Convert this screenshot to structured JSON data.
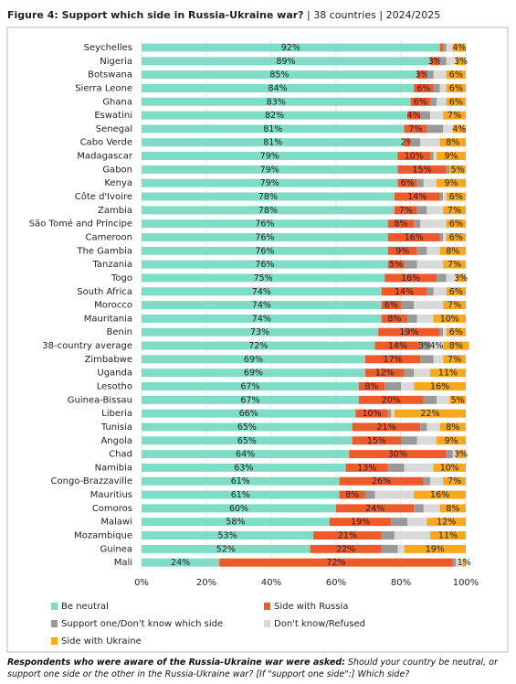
{
  "chart_data": {
    "type": "stacked-bar-horizontal",
    "title": "Figure 4: Support which side in Russia-Ukraine war?",
    "subtitle": " | 38 countries | 2024/2025",
    "categories": [
      "Seychelles",
      "Nigeria",
      "Botswana",
      "Sierra Leone",
      "Ghana",
      "Eswatini",
      "Senegal",
      "Cabo Verde",
      "Madagascar",
      "Gabon",
      "Kenya",
      "Côte d'Ivoire",
      "Zambia",
      "São Tomé and Príncipe",
      "Cameroon",
      "The Gambia",
      "Tanzania",
      "Togo",
      "South Africa",
      "Morocco",
      "Mauritania",
      "Benin",
      "38-country average",
      "Zimbabwe",
      "Uganda",
      "Lesotho",
      "Guinea-Bissau",
      "Liberia",
      "Tunisia",
      "Angola",
      "Chad",
      "Namibia",
      "Congo-Brazzaville",
      "Mauritius",
      "Comoros",
      "Malawi",
      "Mozambique",
      "Guinea",
      "Mali"
    ],
    "series": [
      {
        "name": "Be neutral",
        "color": "#7fdcc6",
        "values": [
          92,
          89,
          85,
          84,
          83,
          82,
          81,
          81,
          79,
          79,
          79,
          78,
          78,
          76,
          76,
          76,
          76,
          75,
          74,
          74,
          74,
          73,
          72,
          69,
          69,
          67,
          67,
          66,
          65,
          65,
          64,
          63,
          61,
          61,
          60,
          58,
          53,
          52,
          24
        ],
        "value_labels": [
          "92%",
          "89%",
          "85%",
          "84%",
          "83%",
          "82%",
          "81%",
          "81%",
          "79%",
          "79%",
          "79%",
          "78%",
          "78%",
          "76%",
          "76%",
          "76%",
          "76%",
          "75%",
          "74%",
          "74%",
          "74%",
          "73%",
          "72%",
          "69%",
          "69%",
          "67%",
          "67%",
          "66%",
          "65%",
          "65%",
          "64%",
          "63%",
          "61%",
          "61%",
          "60%",
          "58%",
          "53%",
          "52%",
          "24%"
        ]
      },
      {
        "name": "Side with Russia",
        "color": "#ef5a2a",
        "values": [
          1,
          3,
          3,
          6,
          6,
          4,
          7,
          2,
          10,
          15,
          6,
          14,
          7,
          8,
          16,
          9,
          5,
          16,
          14,
          6,
          8,
          19,
          14,
          17,
          12,
          8,
          20,
          10,
          21,
          15,
          30,
          13,
          26,
          8,
          24,
          19,
          21,
          22,
          72
        ],
        "value_labels": [
          null,
          "3%",
          "3%",
          "6%",
          "6%",
          "4%",
          "7%",
          "2%",
          "10%",
          "15%",
          "6%",
          "14%",
          "7%",
          "8%",
          "16%",
          "9%",
          "5%",
          "16%",
          "14%",
          "6%",
          "8%",
          "19%",
          "14%",
          "17%",
          "12%",
          "8%",
          "20%",
          "10%",
          "21%",
          "15%",
          "30%",
          "13%",
          "26%",
          "8%",
          "24%",
          "19%",
          "21%",
          "22%",
          "72%"
        ]
      },
      {
        "name": "Support one/Don't know which side",
        "color": "#999999",
        "values": [
          1,
          2,
          2,
          2,
          2,
          3,
          5,
          3,
          1,
          1,
          2,
          1,
          3,
          2,
          1,
          3,
          4,
          3,
          2,
          4,
          3,
          1,
          3,
          4,
          3,
          5,
          4,
          1,
          2,
          5,
          2,
          5,
          2,
          3,
          3,
          5,
          4,
          5,
          1
        ],
        "value_labels": [
          null,
          null,
          null,
          null,
          null,
          null,
          null,
          null,
          null,
          null,
          null,
          null,
          null,
          null,
          null,
          null,
          null,
          null,
          null,
          null,
          null,
          null,
          "3%",
          null,
          null,
          null,
          null,
          null,
          null,
          null,
          null,
          null,
          null,
          null,
          null,
          null,
          null,
          null,
          null
        ]
      },
      {
        "name": "Don't know/Refused",
        "color": "#d9d9d9",
        "values": [
          2,
          3,
          4,
          2,
          3,
          4,
          3,
          6,
          1,
          0,
          4,
          1,
          5,
          8,
          1,
          4,
          8,
          3,
          4,
          9,
          5,
          1,
          4,
          3,
          5,
          4,
          4,
          1,
          4,
          6,
          1,
          9,
          4,
          12,
          5,
          6,
          11,
          2,
          2
        ],
        "value_labels": [
          null,
          null,
          null,
          null,
          null,
          null,
          null,
          null,
          null,
          null,
          null,
          null,
          null,
          null,
          null,
          null,
          null,
          null,
          null,
          null,
          null,
          null,
          "4%",
          null,
          null,
          null,
          null,
          null,
          null,
          null,
          null,
          null,
          null,
          null,
          null,
          null,
          null,
          null,
          null
        ]
      },
      {
        "name": "Side with Ukraine",
        "color": "#f7a81b",
        "values": [
          4,
          3,
          6,
          6,
          6,
          7,
          4,
          8,
          9,
          5,
          9,
          6,
          7,
          6,
          6,
          8,
          7,
          3,
          6,
          7,
          10,
          6,
          8,
          7,
          11,
          16,
          5,
          22,
          8,
          9,
          3,
          10,
          7,
          16,
          8,
          12,
          11,
          19,
          1
        ],
        "value_labels": [
          "4%",
          "3%",
          "6%",
          "6%",
          "6%",
          "7%",
          "4%",
          "8%",
          "9%",
          "5%",
          "9%",
          "6%",
          "7%",
          "6%",
          "6%",
          "8%",
          "7%",
          "3%",
          "6%",
          "7%",
          "10%",
          "6%",
          "8%",
          "7%",
          "11%",
          "16%",
          "5%",
          "22%",
          "8%",
          "9%",
          "3%",
          "10%",
          "7%",
          "16%",
          "8%",
          "12%",
          "11%",
          "19%",
          "1%"
        ]
      }
    ],
    "xlim": [
      0,
      100
    ],
    "xticks": [
      {
        "value": 0,
        "label": "0%"
      },
      {
        "value": 20,
        "label": "20%"
      },
      {
        "value": 40,
        "label": "40%"
      },
      {
        "value": 60,
        "label": "60%"
      },
      {
        "value": 80,
        "label": "80%"
      },
      {
        "value": 100,
        "label": "100%"
      }
    ],
    "grid": true,
    "note_lead": "Respondents who were aware of the Russia-Ukraine war were asked:",
    "note_text": " Should your country be neutral, or support one side or the other in the Russia-Ukraine war? [If \"support one side\":] Which side?"
  }
}
